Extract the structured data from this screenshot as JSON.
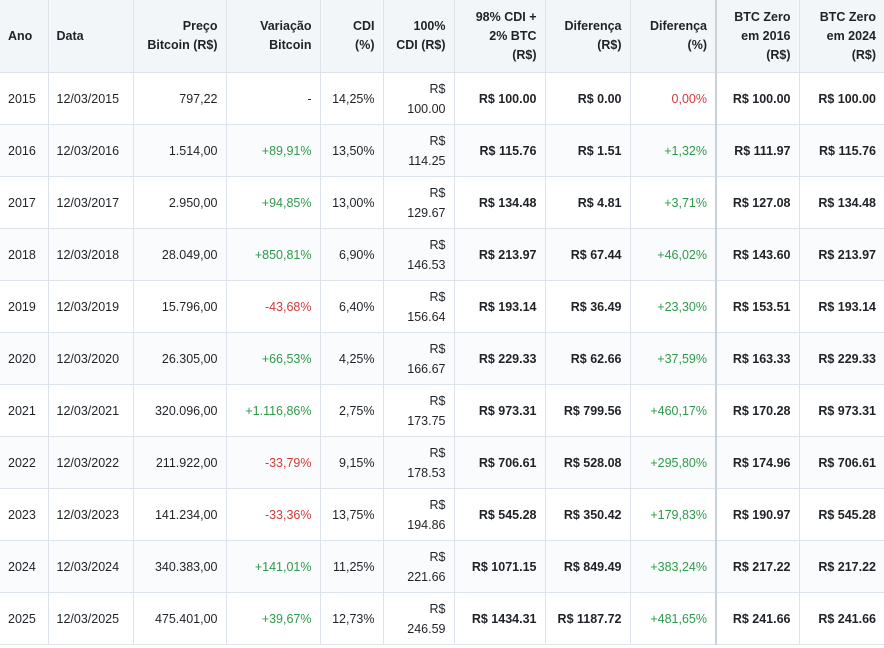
{
  "headers": {
    "ano": "Ano",
    "data": "Data",
    "preco": [
      "Preço",
      "Bitcoin (R$)"
    ],
    "variacao": [
      "Variação",
      "Bitcoin"
    ],
    "cdi": [
      "CDI",
      "(%)"
    ],
    "cdi100": [
      "100%",
      "CDI (R$)"
    ],
    "mix": [
      "98% CDI +",
      "2% BTC",
      "(R$)"
    ],
    "dif_rs": [
      "Diferença",
      "(R$)"
    ],
    "dif_pct": [
      "Diferença",
      "(%)"
    ],
    "btc2016": [
      "BTC Zero",
      "em 2016",
      "(R$)"
    ],
    "btc2024": [
      "BTC Zero",
      "em 2024",
      "(R$)"
    ]
  },
  "rows": [
    {
      "ano": "2015",
      "data": "12/03/2015",
      "preco": "797,22",
      "variacao": "-",
      "var_status": "neutral",
      "cdi": "14,25%",
      "cdi100": [
        "R$",
        "100.00"
      ],
      "mix": "R$ 100.00",
      "dif_rs": "R$ 0.00",
      "dif_pct": "0,00%",
      "dif_status": "negative",
      "btc2016": "R$ 100.00",
      "btc2024": "R$ 100.00"
    },
    {
      "ano": "2016",
      "data": "12/03/2016",
      "preco": "1.514,00",
      "variacao": "+89,91%",
      "var_status": "positive",
      "cdi": "13,50%",
      "cdi100": [
        "R$",
        "114.25"
      ],
      "mix": "R$ 115.76",
      "dif_rs": "R$ 1.51",
      "dif_pct": "+1,32%",
      "dif_status": "positive",
      "btc2016": "R$ 111.97",
      "btc2024": "R$ 115.76"
    },
    {
      "ano": "2017",
      "data": "12/03/2017",
      "preco": "2.950,00",
      "variacao": "+94,85%",
      "var_status": "positive",
      "cdi": "13,00%",
      "cdi100": [
        "R$",
        "129.67"
      ],
      "mix": "R$ 134.48",
      "dif_rs": "R$ 4.81",
      "dif_pct": "+3,71%",
      "dif_status": "positive",
      "btc2016": "R$ 127.08",
      "btc2024": "R$ 134.48"
    },
    {
      "ano": "2018",
      "data": "12/03/2018",
      "preco": "28.049,00",
      "variacao": "+850,81%",
      "var_status": "positive",
      "cdi": "6,90%",
      "cdi100": [
        "R$",
        "146.53"
      ],
      "mix": "R$ 213.97",
      "dif_rs": "R$ 67.44",
      "dif_pct": "+46,02%",
      "dif_status": "positive",
      "btc2016": "R$ 143.60",
      "btc2024": "R$ 213.97"
    },
    {
      "ano": "2019",
      "data": "12/03/2019",
      "preco": "15.796,00",
      "variacao": "-43,68%",
      "var_status": "negative",
      "cdi": "6,40%",
      "cdi100": [
        "R$",
        "156.64"
      ],
      "mix": "R$ 193.14",
      "dif_rs": "R$ 36.49",
      "dif_pct": "+23,30%",
      "dif_status": "positive",
      "btc2016": "R$ 153.51",
      "btc2024": "R$ 193.14"
    },
    {
      "ano": "2020",
      "data": "12/03/2020",
      "preco": "26.305,00",
      "variacao": "+66,53%",
      "var_status": "positive",
      "cdi": "4,25%",
      "cdi100": [
        "R$",
        "166.67"
      ],
      "mix": "R$ 229.33",
      "dif_rs": "R$ 62.66",
      "dif_pct": "+37,59%",
      "dif_status": "positive",
      "btc2016": "R$ 163.33",
      "btc2024": "R$ 229.33"
    },
    {
      "ano": "2021",
      "data": "12/03/2021",
      "preco": "320.096,00",
      "variacao": "+1.116,86%",
      "var_status": "positive",
      "cdi": "2,75%",
      "cdi100": [
        "R$",
        "173.75"
      ],
      "mix": "R$ 973.31",
      "dif_rs": "R$ 799.56",
      "dif_pct": "+460,17%",
      "dif_status": "positive",
      "btc2016": "R$ 170.28",
      "btc2024": "R$ 973.31"
    },
    {
      "ano": "2022",
      "data": "12/03/2022",
      "preco": "211.922,00",
      "variacao": "-33,79%",
      "var_status": "negative",
      "cdi": "9,15%",
      "cdi100": [
        "R$",
        "178.53"
      ],
      "mix": "R$ 706.61",
      "dif_rs": "R$ 528.08",
      "dif_pct": "+295,80%",
      "dif_status": "positive",
      "btc2016": "R$ 174.96",
      "btc2024": "R$ 706.61"
    },
    {
      "ano": "2023",
      "data": "12/03/2023",
      "preco": "141.234,00",
      "variacao": "-33,36%",
      "var_status": "negative",
      "cdi": "13,75%",
      "cdi100": [
        "R$",
        "194.86"
      ],
      "mix": "R$ 545.28",
      "dif_rs": "R$ 350.42",
      "dif_pct": "+179,83%",
      "dif_status": "positive",
      "btc2016": "R$ 190.97",
      "btc2024": "R$ 545.28"
    },
    {
      "ano": "2024",
      "data": "12/03/2024",
      "preco": "340.383,00",
      "variacao": "+141,01%",
      "var_status": "positive",
      "cdi": "11,25%",
      "cdi100": [
        "R$",
        "221.66"
      ],
      "mix": "R$ 1071.15",
      "dif_rs": "R$ 849.49",
      "dif_pct": "+383,24%",
      "dif_status": "positive",
      "btc2016": "R$ 217.22",
      "btc2024": "R$ 217.22"
    },
    {
      "ano": "2025",
      "data": "12/03/2025",
      "preco": "475.401,00",
      "variacao": "+39,67%",
      "var_status": "positive",
      "cdi": "12,73%",
      "cdi100": [
        "R$",
        "246.59"
      ],
      "mix": "R$ 1434.31",
      "dif_rs": "R$ 1187.72",
      "dif_pct": "+481,65%",
      "dif_status": "positive",
      "btc2016": "R$ 241.66",
      "btc2024": "R$ 241.66"
    }
  ]
}
